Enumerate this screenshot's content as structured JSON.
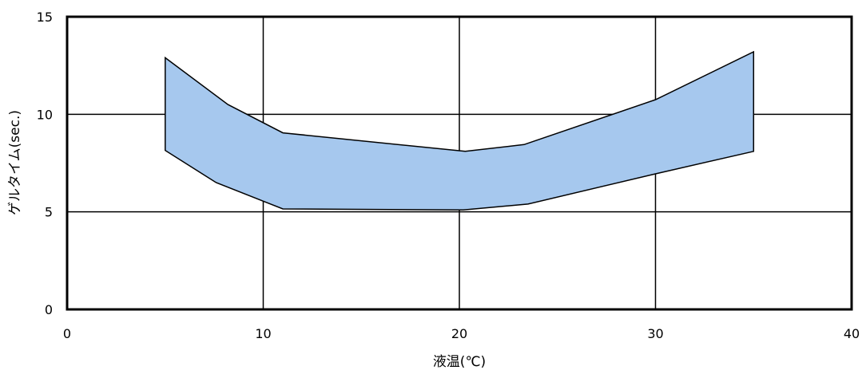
{
  "chart_data": {
    "type": "area",
    "title": "",
    "xlabel": "液温(℃)",
    "ylabel": "ゲルタイム(sec.)",
    "xlim": [
      0,
      40
    ],
    "ylim": [
      0,
      15
    ],
    "x_ticks": [
      "0",
      "10",
      "20",
      "30",
      "40"
    ],
    "y_ticks": [
      "0",
      "5",
      "10",
      "15"
    ],
    "grid": true,
    "legend": "none",
    "fill_color": "#a6c8ee",
    "line_color": "#000000",
    "upper": {
      "x": [
        5,
        8.2,
        11,
        20.3,
        23.3,
        30,
        35
      ],
      "y": [
        12.9,
        10.5,
        9.05,
        8.1,
        8.45,
        10.75,
        13.2
      ]
    },
    "lower": {
      "x": [
        5,
        7.6,
        11,
        20.2,
        23.5,
        30,
        35
      ],
      "y": [
        8.15,
        6.5,
        5.15,
        5.1,
        5.4,
        6.95,
        8.1
      ]
    }
  }
}
